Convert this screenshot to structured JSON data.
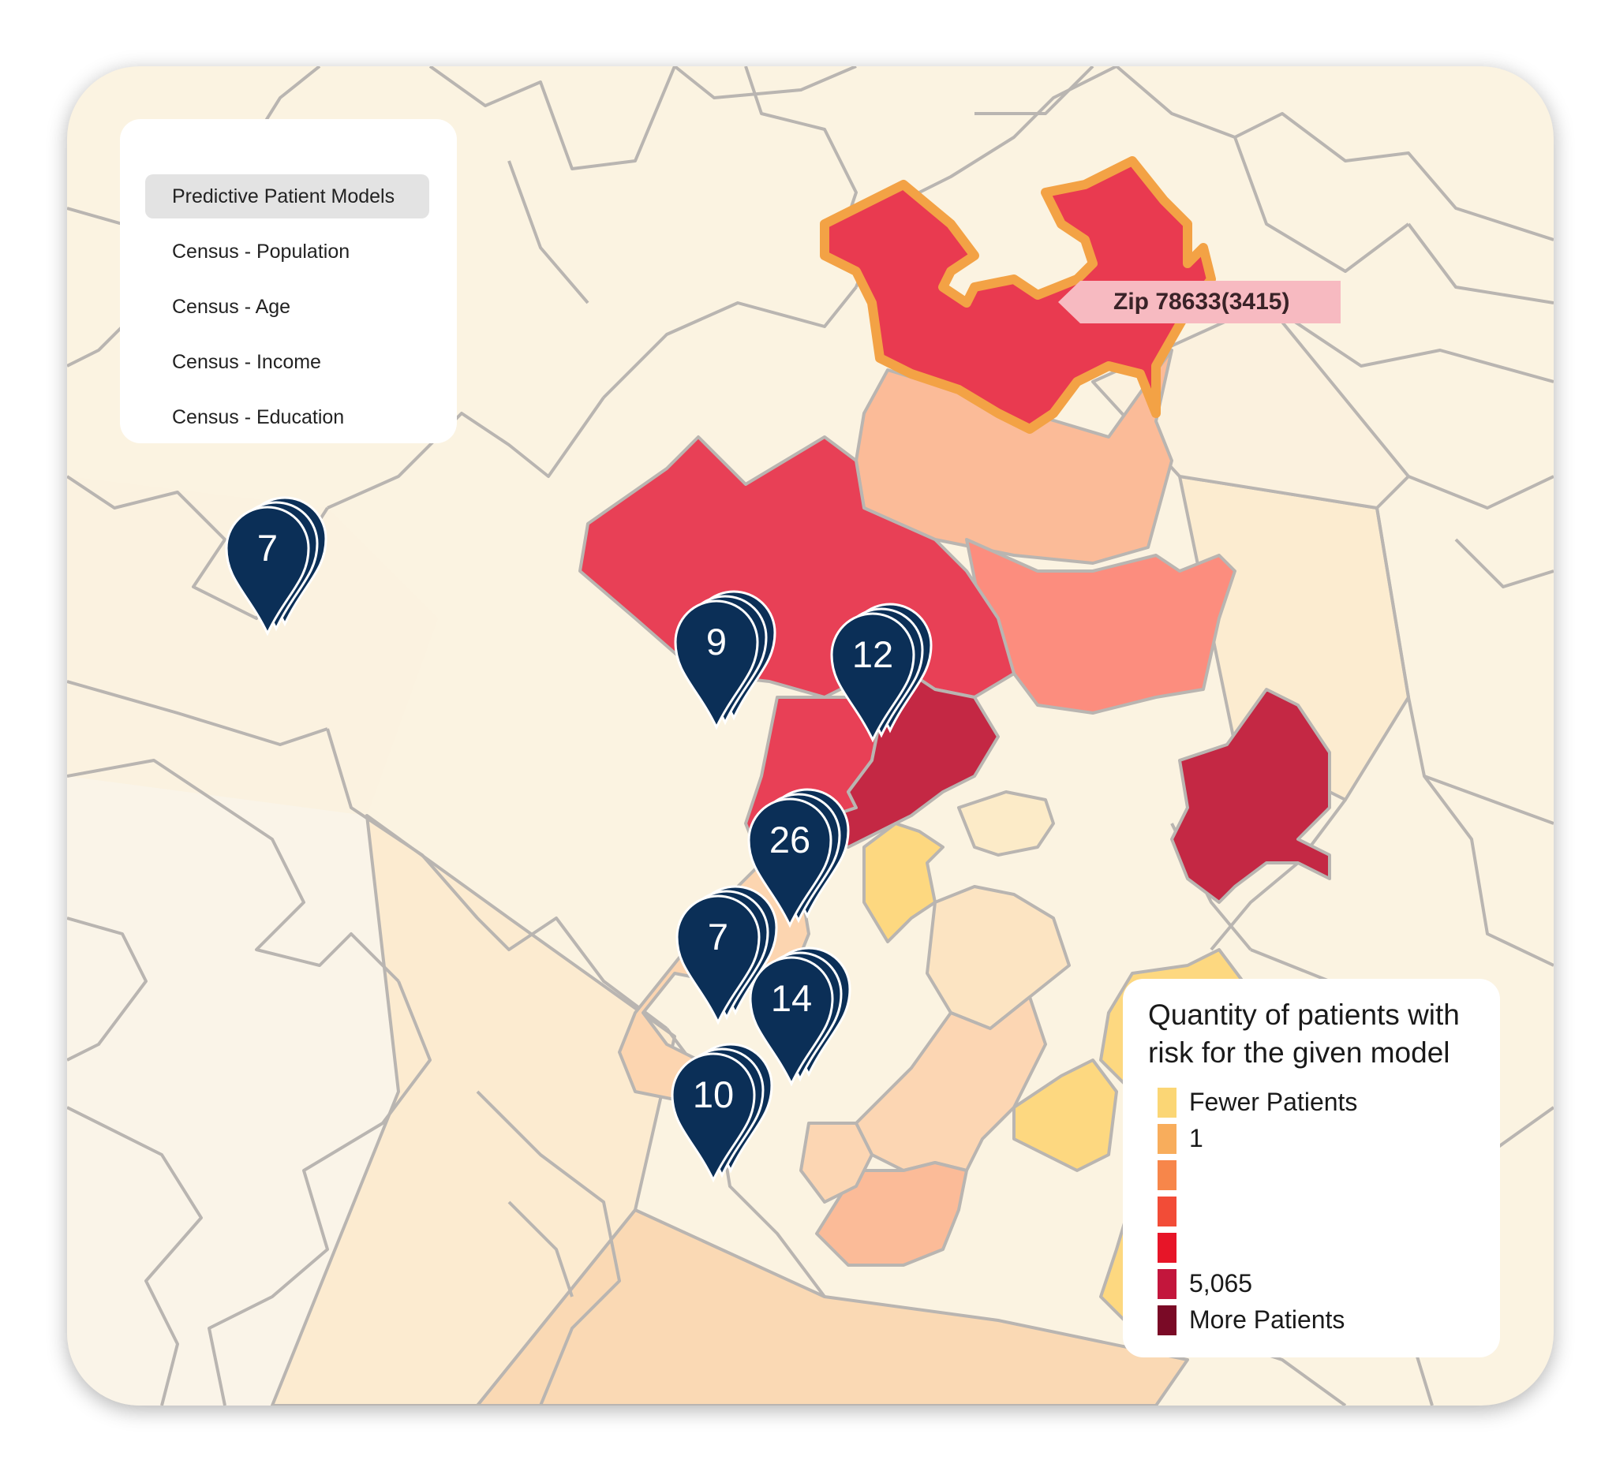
{
  "colors": {
    "map_background": "#fbf3e1",
    "region_border": "#b9b5b1",
    "selected_outline": "#f3a245",
    "pin_fill": "#0b2f57",
    "tooltip_fill": "#f7bac1"
  },
  "layer_menu": {
    "items": [
      {
        "label": "Predictive Patient Models",
        "active": true
      },
      {
        "label": "Census - Population",
        "active": false
      },
      {
        "label": "Census - Age",
        "active": false
      },
      {
        "label": "Census - Income",
        "active": false
      },
      {
        "label": "Census - Education",
        "active": false
      }
    ]
  },
  "tooltip": {
    "text": "Zip 78633(3415)"
  },
  "clusters": [
    {
      "count": "7",
      "name": "cluster-7-west"
    },
    {
      "count": "9",
      "name": "cluster-9"
    },
    {
      "count": "12",
      "name": "cluster-12"
    },
    {
      "count": "26",
      "name": "cluster-26"
    },
    {
      "count": "7",
      "name": "cluster-7-south"
    },
    {
      "count": "14",
      "name": "cluster-14"
    },
    {
      "count": "10",
      "name": "cluster-10"
    }
  ],
  "legend": {
    "title": "Quantity of patients with risk for the given model",
    "entries": [
      {
        "label": "Fewer Patients",
        "color": "#fbd675"
      },
      {
        "label": "1",
        "color": "#f8ad5c"
      },
      {
        "label": "",
        "color": "#f7864a"
      },
      {
        "label": "",
        "color": "#f24c37"
      },
      {
        "label": "",
        "color": "#e71528"
      },
      {
        "label": "5,065",
        "color": "#c3163c"
      },
      {
        "label": "More Patients",
        "color": "#7a0a26"
      }
    ]
  }
}
